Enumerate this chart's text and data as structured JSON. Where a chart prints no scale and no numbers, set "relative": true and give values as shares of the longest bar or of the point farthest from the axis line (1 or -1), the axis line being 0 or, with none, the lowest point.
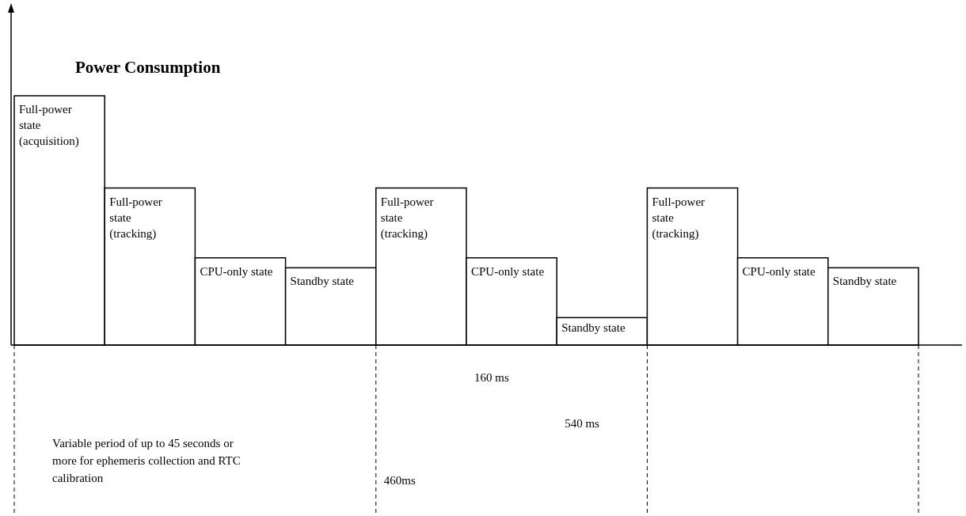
{
  "chart_data": {
    "type": "bar",
    "title": "Power Consumption",
    "relative": true,
    "color": "#ffffff",
    "categories": [
      "Full-power state (acquisition)",
      "Full-power state (tracking)",
      "CPU-only state",
      "Standby state",
      "Full-power state (tracking)",
      "CPU-only state",
      "Standby state",
      "Full-power state (tracking)",
      "CPU-only state",
      "Standby state"
    ],
    "values": [
      1,
      0.63,
      0.35,
      0.31,
      0.63,
      0.35,
      0.11,
      0.63,
      0.35,
      0.31
    ],
    "annotations": [
      "Variable period of up to 45 seconds or more for ephemeris collection and RTC calibration",
      "460ms",
      "160 ms",
      "540 ms"
    ]
  }
}
